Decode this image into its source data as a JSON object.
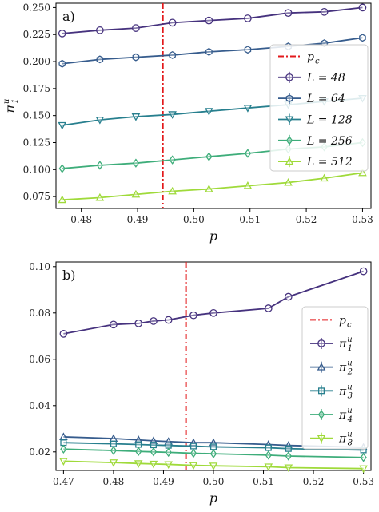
{
  "chart_data": [
    {
      "type": "line",
      "panel_label": "a)",
      "xlabel": "p",
      "ylabel": "π",
      "ylabel_sup": "u",
      "ylabel_sub": "1",
      "xlim": [
        0.4755,
        0.5315
      ],
      "ylim": [
        0.064,
        0.254
      ],
      "xticks": [
        0.48,
        0.49,
        0.5,
        0.51,
        0.52,
        0.53
      ],
      "xtick_labels": [
        "0.48",
        "0.49",
        "0.50",
        "0.51",
        "0.52",
        "0.53"
      ],
      "yticks": [
        0.075,
        0.1,
        0.125,
        0.15,
        0.175,
        0.2,
        0.225,
        0.25
      ],
      "ytick_labels": [
        "0.075",
        "0.100",
        "0.125",
        "0.150",
        "0.175",
        "0.200",
        "0.225",
        "0.250"
      ],
      "grid": false,
      "legend_position": "right",
      "critical_line": {
        "x": 0.4945,
        "label": "p",
        "label_sub": "c",
        "color": "#e31a1c"
      },
      "series": [
        {
          "name": "L = 48",
          "color": "#46327e",
          "marker": "circle",
          "x": [
            0.4766,
            0.4833,
            0.4897,
            0.4962,
            0.5027,
            0.5096,
            0.5168,
            0.5232,
            0.53
          ],
          "y": [
            0.226,
            0.229,
            0.231,
            0.236,
            0.238,
            0.24,
            0.245,
            0.246,
            0.25
          ]
        },
        {
          "name": "L = 64",
          "color": "#365c8d",
          "marker": "hexagon",
          "x": [
            0.4766,
            0.4833,
            0.4897,
            0.4962,
            0.5027,
            0.5096,
            0.5168,
            0.5232,
            0.53
          ],
          "y": [
            0.198,
            0.202,
            0.204,
            0.206,
            0.209,
            0.211,
            0.214,
            0.217,
            0.222
          ]
        },
        {
          "name": "L = 128",
          "color": "#277f8e",
          "marker": "triangle-down",
          "x": [
            0.4766,
            0.4833,
            0.4897,
            0.4962,
            0.5027,
            0.5096,
            0.5168,
            0.5232,
            0.53
          ],
          "y": [
            0.141,
            0.146,
            0.149,
            0.151,
            0.154,
            0.157,
            0.16,
            0.163,
            0.166
          ]
        },
        {
          "name": "L = 256",
          "color": "#3ead7a",
          "marker": "diamond",
          "x": [
            0.4766,
            0.4833,
            0.4897,
            0.4962,
            0.5027,
            0.5096,
            0.5168,
            0.5232,
            0.53
          ],
          "y": [
            0.101,
            0.104,
            0.106,
            0.109,
            0.112,
            0.115,
            0.119,
            0.121,
            0.125
          ]
        },
        {
          "name": "L = 512",
          "color": "#9fda3a",
          "marker": "triangle-up",
          "x": [
            0.4766,
            0.4833,
            0.4897,
            0.4962,
            0.5027,
            0.5096,
            0.5168,
            0.5232,
            0.53
          ],
          "y": [
            0.072,
            0.074,
            0.077,
            0.08,
            0.082,
            0.085,
            0.088,
            0.092,
            0.097
          ]
        }
      ]
    },
    {
      "type": "line",
      "panel_label": "b)",
      "xlabel": "p",
      "ylabel": "",
      "xlim": [
        0.4685,
        0.5315
      ],
      "ylim": [
        0.012,
        0.102
      ],
      "xticks": [
        0.47,
        0.48,
        0.49,
        0.5,
        0.51,
        0.52,
        0.53
      ],
      "xtick_labels": [
        "0.47",
        "0.48",
        "0.49",
        "0.50",
        "0.51",
        "0.52",
        "0.53"
      ],
      "yticks": [
        0.02,
        0.04,
        0.06,
        0.08,
        0.1
      ],
      "ytick_labels": [
        "0.02",
        "0.04",
        "0.06",
        "0.08",
        "0.10"
      ],
      "grid": false,
      "legend_position": "right",
      "critical_line": {
        "x": 0.4945,
        "label": "p",
        "label_sub": "c",
        "color": "#e31a1c"
      },
      "series": [
        {
          "name": "π",
          "name_sup": "u",
          "name_sub": "1",
          "color": "#46327e",
          "marker": "circle",
          "x": [
            0.47,
            0.48,
            0.485,
            0.488,
            0.491,
            0.496,
            0.5,
            0.511,
            0.515,
            0.53
          ],
          "y": [
            0.071,
            0.075,
            0.0755,
            0.0765,
            0.077,
            0.079,
            0.08,
            0.082,
            0.087,
            0.098
          ]
        },
        {
          "name": "π",
          "name_sup": "u",
          "name_sub": "2",
          "color": "#365c8d",
          "marker": "triangle-up",
          "x": [
            0.47,
            0.48,
            0.485,
            0.488,
            0.491,
            0.496,
            0.5,
            0.511,
            0.515,
            0.53
          ],
          "y": [
            0.0265,
            0.0258,
            0.0252,
            0.0248,
            0.0245,
            0.024,
            0.024,
            0.0232,
            0.0228,
            0.022
          ]
        },
        {
          "name": "π",
          "name_sup": "u",
          "name_sub": "3",
          "color": "#277f8e",
          "marker": "square",
          "x": [
            0.47,
            0.48,
            0.485,
            0.488,
            0.491,
            0.496,
            0.5,
            0.511,
            0.515,
            0.53
          ],
          "y": [
            0.024,
            0.0235,
            0.0232,
            0.023,
            0.0228,
            0.0225,
            0.0222,
            0.0218,
            0.0214,
            0.0208
          ]
        },
        {
          "name": "π",
          "name_sup": "u",
          "name_sub": "4",
          "color": "#3ead7a",
          "marker": "diamond",
          "x": [
            0.47,
            0.48,
            0.485,
            0.488,
            0.491,
            0.496,
            0.5,
            0.511,
            0.515,
            0.53
          ],
          "y": [
            0.0212,
            0.0206,
            0.0202,
            0.02,
            0.0198,
            0.0194,
            0.0192,
            0.0186,
            0.0182,
            0.0176
          ]
        },
        {
          "name": "π",
          "name_sup": "u",
          "name_sub": "8",
          "color": "#9fda3a",
          "marker": "triangle-down",
          "x": [
            0.47,
            0.48,
            0.485,
            0.488,
            0.491,
            0.496,
            0.5,
            0.511,
            0.515,
            0.53
          ],
          "y": [
            0.016,
            0.0154,
            0.015,
            0.0148,
            0.0146,
            0.0142,
            0.014,
            0.0136,
            0.0132,
            0.0128
          ]
        }
      ]
    }
  ]
}
